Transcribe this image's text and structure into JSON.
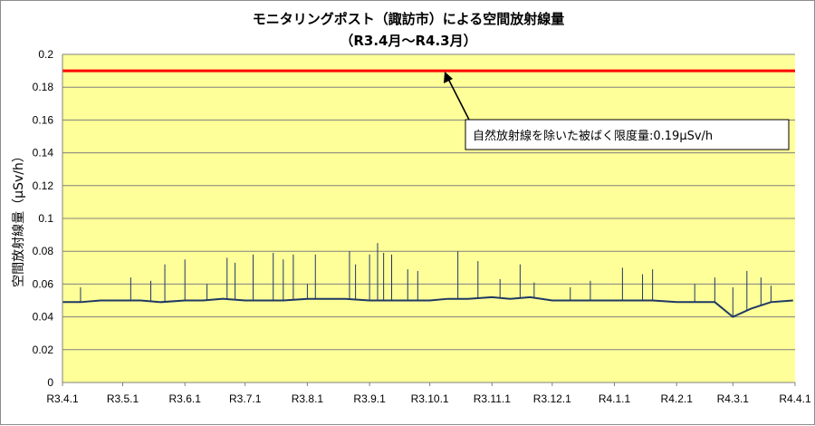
{
  "chart_data": {
    "type": "line",
    "title": "モニタリングポスト（諏訪市）による空間放射線量",
    "subtitle": "（R3.4月～R4.3月）",
    "ylabel": "空間放射線量（µSv/h）",
    "ylim": [
      0,
      0.2
    ],
    "y_ticks": [
      "0",
      "0.02",
      "0.04",
      "0.06",
      "0.08",
      "0.1",
      "0.12",
      "0.14",
      "0.16",
      "0.18",
      "0.2"
    ],
    "x_ticks": [
      "R3.4.1",
      "R3.5.1",
      "R3.6.1",
      "R3.7.1",
      "R3.8.1",
      "R3.9.1",
      "R3.10.1",
      "R3.11.1",
      "R3.12.1",
      "R4.1.1",
      "R4.2.1",
      "R4.3.1",
      "R4.4.1"
    ],
    "grid": true,
    "background": "#ffff99",
    "reference_line": {
      "value": 0.19,
      "color": "#ff0000"
    },
    "annotation": "自然放射線を除いた被ばく限度量:0.19μSv/h",
    "series_color": "#1f3864",
    "series": [
      {
        "x": [
          "R3.4.1",
          "R3.4.10",
          "R3.4.20",
          "R3.5.1",
          "R3.5.10",
          "R3.5.20",
          "R3.6.1",
          "R3.6.10",
          "R3.6.20",
          "R3.7.1",
          "R3.7.10",
          "R3.7.20",
          "R3.8.1",
          "R3.8.10",
          "R3.8.20",
          "R3.9.1",
          "R3.9.10",
          "R3.9.20",
          "R3.10.1",
          "R3.10.10",
          "R3.10.20",
          "R3.11.1",
          "R3.11.10",
          "R3.11.20",
          "R3.12.1",
          "R3.12.10",
          "R3.12.20",
          "R4.1.1",
          "R4.1.10",
          "R4.1.20",
          "R4.2.1",
          "R4.2.10",
          "R4.2.20",
          "R4.3.1",
          "R4.3.10",
          "R4.3.20",
          "R4.3.31"
        ],
        "values": [
          0.049,
          0.049,
          0.05,
          0.05,
          0.05,
          0.049,
          0.05,
          0.05,
          0.051,
          0.05,
          0.05,
          0.05,
          0.051,
          0.051,
          0.051,
          0.05,
          0.05,
          0.05,
          0.05,
          0.051,
          0.051,
          0.052,
          0.051,
          0.052,
          0.05,
          0.05,
          0.05,
          0.05,
          0.05,
          0.05,
          0.049,
          0.049,
          0.049,
          0.04,
          0.045,
          0.049,
          0.05
        ],
        "peaks": [
          {
            "x": "R3.4.10",
            "value": 0.058
          },
          {
            "x": "R3.5.5",
            "value": 0.064
          },
          {
            "x": "R3.5.15",
            "value": 0.062
          },
          {
            "x": "R3.5.22",
            "value": 0.072
          },
          {
            "x": "R3.6.1",
            "value": 0.075
          },
          {
            "x": "R3.6.12",
            "value": 0.06
          },
          {
            "x": "R3.6.22",
            "value": 0.076
          },
          {
            "x": "R3.6.26",
            "value": 0.073
          },
          {
            "x": "R3.7.5",
            "value": 0.078
          },
          {
            "x": "R3.7.15",
            "value": 0.079
          },
          {
            "x": "R3.7.20",
            "value": 0.075
          },
          {
            "x": "R3.7.25",
            "value": 0.078
          },
          {
            "x": "R3.8.1",
            "value": 0.06
          },
          {
            "x": "R3.8.5",
            "value": 0.078
          },
          {
            "x": "R3.8.22",
            "value": 0.08
          },
          {
            "x": "R3.8.25",
            "value": 0.072
          },
          {
            "x": "R3.9.1",
            "value": 0.078
          },
          {
            "x": "R3.9.5",
            "value": 0.085
          },
          {
            "x": "R3.9.8",
            "value": 0.079
          },
          {
            "x": "R3.9.12",
            "value": 0.078
          },
          {
            "x": "R3.9.20",
            "value": 0.069
          },
          {
            "x": "R3.9.25",
            "value": 0.068
          },
          {
            "x": "R3.10.15",
            "value": 0.08
          },
          {
            "x": "R3.10.25",
            "value": 0.074
          },
          {
            "x": "R3.11.5",
            "value": 0.063
          },
          {
            "x": "R3.11.15",
            "value": 0.072
          },
          {
            "x": "R3.11.22",
            "value": 0.061
          },
          {
            "x": "R3.12.10",
            "value": 0.058
          },
          {
            "x": "R3.12.20",
            "value": 0.062
          },
          {
            "x": "R4.1.5",
            "value": 0.07
          },
          {
            "x": "R4.1.15",
            "value": 0.066
          },
          {
            "x": "R4.1.20",
            "value": 0.069
          },
          {
            "x": "R4.2.10",
            "value": 0.06
          },
          {
            "x": "R4.2.20",
            "value": 0.064
          },
          {
            "x": "R4.3.1",
            "value": 0.058
          },
          {
            "x": "R4.3.8",
            "value": 0.068
          },
          {
            "x": "R4.3.15",
            "value": 0.064
          },
          {
            "x": "R4.3.20",
            "value": 0.059
          }
        ]
      }
    ]
  }
}
